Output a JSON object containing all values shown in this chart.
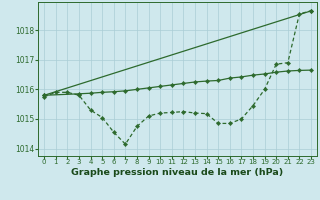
{
  "title": "Graphe pression niveau de la mer (hPa)",
  "line1_straight": {
    "x": [
      0,
      23
    ],
    "y": [
      1015.8,
      1018.65
    ],
    "color": "#2d6a2d",
    "linewidth": 0.9,
    "marker": "D",
    "markersize": 2.2
  },
  "line2_mid": {
    "x": [
      0,
      3,
      4,
      5,
      6,
      7,
      8,
      9,
      10,
      11,
      12,
      13,
      14,
      15,
      16,
      17,
      18,
      19,
      20,
      21,
      22,
      23
    ],
    "y": [
      1015.8,
      1015.85,
      1015.87,
      1015.9,
      1015.92,
      1015.95,
      1016.0,
      1016.05,
      1016.1,
      1016.15,
      1016.2,
      1016.25,
      1016.28,
      1016.3,
      1016.38,
      1016.42,
      1016.48,
      1016.52,
      1016.58,
      1016.62,
      1016.64,
      1016.65
    ],
    "color": "#2d6a2d",
    "linewidth": 0.9,
    "marker": "D",
    "markersize": 2.2
  },
  "line3_wavy": {
    "x": [
      0,
      1,
      2,
      3,
      4,
      5,
      6,
      7,
      8,
      9,
      10,
      11,
      12,
      13,
      14,
      15,
      16,
      17,
      18,
      19,
      20,
      21,
      22,
      23
    ],
    "y": [
      1015.75,
      1015.9,
      1015.9,
      1015.8,
      1015.3,
      1015.05,
      1014.55,
      1014.15,
      1014.75,
      1015.1,
      1015.2,
      1015.22,
      1015.25,
      1015.2,
      1015.18,
      1014.85,
      1014.85,
      1015.0,
      1015.45,
      1016.0,
      1016.85,
      1016.9,
      1018.55,
      1018.65
    ],
    "color": "#2d6a2d",
    "linewidth": 0.9,
    "marker": "D",
    "markersize": 2.2,
    "linestyle": "--"
  },
  "ylim": [
    1013.75,
    1018.95
  ],
  "yticks": [
    1014,
    1015,
    1016,
    1017,
    1018
  ],
  "xticks": [
    0,
    1,
    2,
    3,
    4,
    5,
    6,
    7,
    8,
    9,
    10,
    11,
    12,
    13,
    14,
    15,
    16,
    17,
    18,
    19,
    20,
    21,
    22,
    23
  ],
  "bg_color": "#cfe8ed",
  "grid_color": "#aacdd5",
  "line_color": "#2d6a2d",
  "title_color": "#1a4a1a",
  "tick_fontsize": 5.0,
  "title_fontsize": 6.8
}
